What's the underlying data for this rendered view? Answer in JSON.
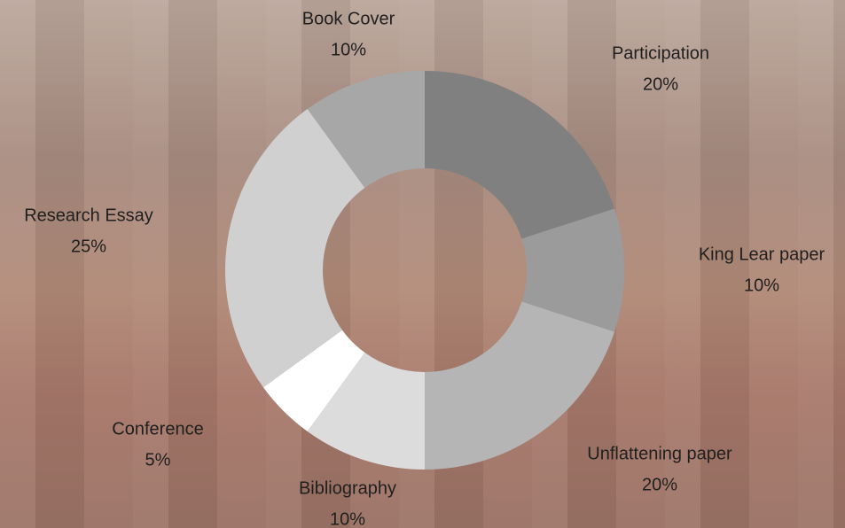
{
  "chart_data": {
    "type": "donut",
    "categories": [
      "Participation",
      "King Lear paper",
      "Unflattening paper",
      "Bibliography",
      "Conference",
      "Research Essay",
      "Book Cover"
    ],
    "values": [
      20,
      10,
      20,
      10,
      5,
      25,
      10
    ],
    "value_labels": [
      "20%",
      "10%",
      "20%",
      "10%",
      "5%",
      "25%",
      "10%"
    ],
    "colors": [
      "#808080",
      "#9b9b9b",
      "#b5b5b5",
      "#dcdcdc",
      "#ffffff",
      "#d0d0d0",
      "#a7a7a7"
    ]
  }
}
